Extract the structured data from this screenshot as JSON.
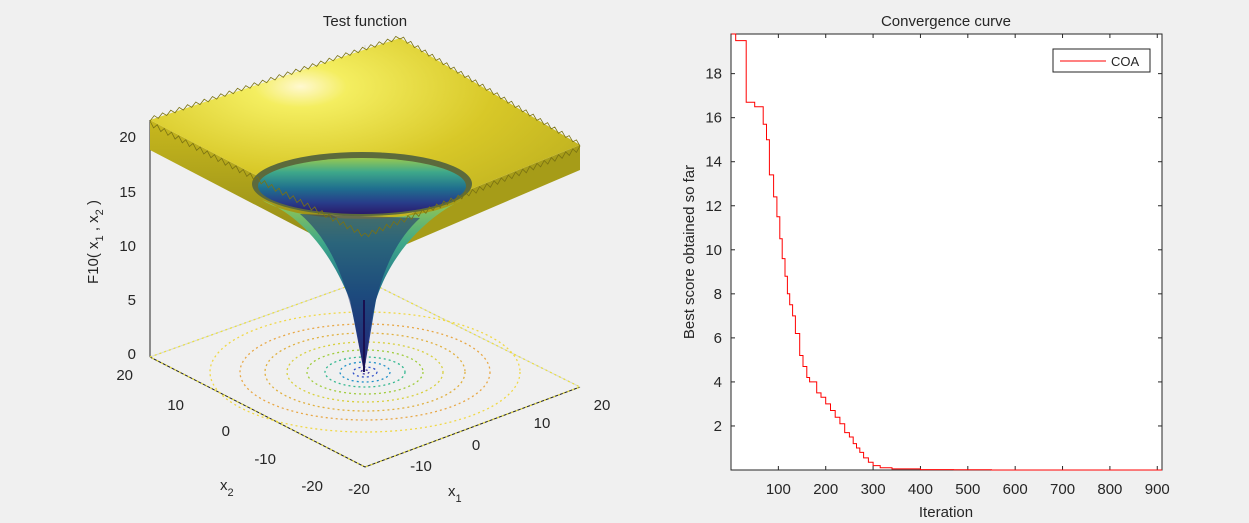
{
  "chart_data": [
    {
      "type": "surface",
      "title": "Test function",
      "zlabel": {
        "base": "F10( x",
        "s1": "1",
        "sep": " , x",
        "s2": "2",
        "end": " )"
      },
      "xlabel": {
        "base": "x",
        "sub": "1"
      },
      "ylabel": {
        "base": "x",
        "sub": "2"
      },
      "xlim": [
        -20,
        20
      ],
      "ylim": [
        -20,
        20
      ],
      "zlim": [
        0,
        21
      ],
      "x_ticks": [
        "-20",
        "-10",
        "0",
        "10",
        "20"
      ],
      "y_ticks": [
        "-20",
        "-10",
        "0",
        "10",
        "20"
      ],
      "z_ticks": [
        "0",
        "5",
        "10",
        "15",
        "20"
      ],
      "colormap": "parula",
      "contour_floor": true
    },
    {
      "type": "line",
      "title": "Convergence curve",
      "xlabel": "Iteration",
      "ylabel": "Best score obtained so far",
      "xlim": [
        0,
        910
      ],
      "ylim": [
        0,
        19.8
      ],
      "x_ticks": [
        "100",
        "200",
        "300",
        "400",
        "500",
        "600",
        "700",
        "800",
        "900"
      ],
      "y_ticks": [
        "2",
        "4",
        "6",
        "8",
        "10",
        "12",
        "14",
        "16",
        "18"
      ],
      "legend_position": "top-right",
      "series": [
        {
          "name": "COA",
          "color": "#ff0000",
          "x": [
            1,
            10,
            10,
            32,
            32,
            50,
            50,
            68,
            68,
            75,
            75,
            81,
            81,
            90,
            90,
            97,
            97,
            103,
            103,
            108,
            108,
            114,
            114,
            119,
            119,
            124,
            124,
            130,
            130,
            136,
            136,
            145,
            145,
            152,
            152,
            160,
            160,
            166,
            166,
            181,
            181,
            190,
            190,
            200,
            200,
            210,
            210,
            220,
            220,
            230,
            230,
            240,
            240,
            250,
            250,
            258,
            258,
            265,
            265,
            272,
            272,
            280,
            280,
            290,
            290,
            300,
            300,
            315,
            315,
            340,
            340,
            400,
            400,
            470,
            470,
            550,
            550,
            650,
            650,
            910
          ],
          "y": [
            19.8,
            19.8,
            19.5,
            19.5,
            16.7,
            16.7,
            16.5,
            16.5,
            15.7,
            15.7,
            15.0,
            15.0,
            13.4,
            13.4,
            12.4,
            12.4,
            11.5,
            11.5,
            10.5,
            10.5,
            9.6,
            9.6,
            8.8,
            8.8,
            8.0,
            8.0,
            7.5,
            7.5,
            7.0,
            7.0,
            6.2,
            6.2,
            5.2,
            5.2,
            4.7,
            4.7,
            4.2,
            4.2,
            4.0,
            4.0,
            3.5,
            3.5,
            3.3,
            3.3,
            3.0,
            3.0,
            2.7,
            2.7,
            2.4,
            2.4,
            2.1,
            2.1,
            1.7,
            1.7,
            1.5,
            1.5,
            1.2,
            1.2,
            1.0,
            1.0,
            0.8,
            0.8,
            0.55,
            0.55,
            0.35,
            0.35,
            0.2,
            0.2,
            0.1,
            0.1,
            0.05,
            0.05,
            0.02,
            0.02,
            0.01,
            0.01,
            0.0,
            0.0,
            0.0,
            0.0
          ]
        }
      ]
    }
  ]
}
